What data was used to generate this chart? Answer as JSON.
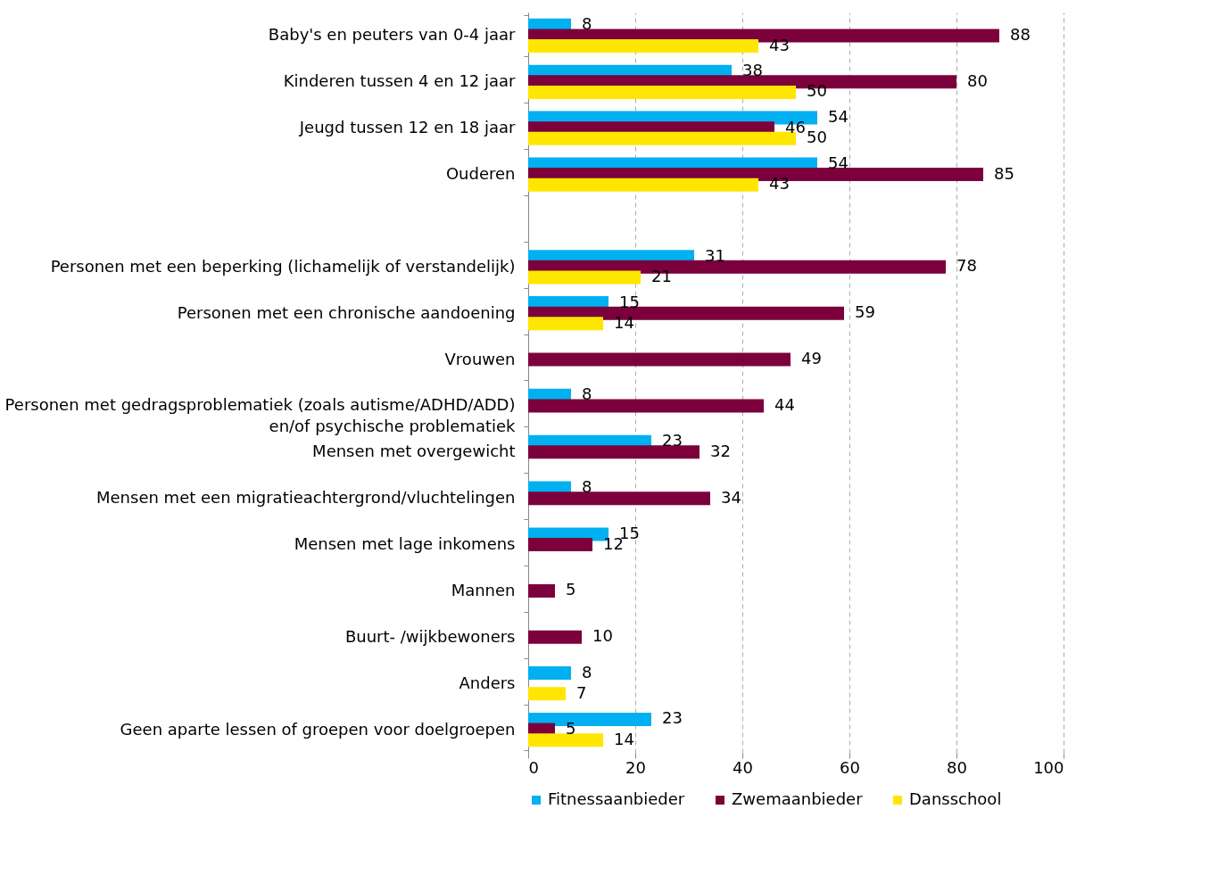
{
  "chart_data": {
    "type": "bar",
    "orientation": "horizontal",
    "categories": [
      "Baby's en peuters van 0-4 jaar",
      "Kinderen tussen 4 en 12 jaar",
      "Jeugd tussen 12 en 18 jaar",
      "Ouderen",
      null,
      "Personen met een beperking (lichamelijk of verstandelijk)",
      "Personen met een chronische aandoening",
      "Vrouwen",
      "Personen met gedragsproblematiek (zoals autisme/ADHD/ADD)\nen/of psychische problematiek",
      "Mensen met overgewicht",
      "Mensen met een migratieachtergrond/vluchtelingen",
      "Mensen met lage inkomens",
      "Mannen",
      "Buurt- /wijkbewoners",
      "Anders",
      "Geen aparte lessen of groepen voor doelgroepen"
    ],
    "series": [
      {
        "name": "Fitnessaanbieder",
        "color": "#00b0f0",
        "values": [
          8,
          38,
          54,
          54,
          null,
          31,
          15,
          null,
          8,
          23,
          8,
          15,
          null,
          null,
          8,
          23
        ]
      },
      {
        "name": "Zwemaanbieder",
        "color": "#7b003c",
        "values": [
          88,
          80,
          46,
          85,
          null,
          78,
          59,
          49,
          44,
          32,
          34,
          12,
          5,
          10,
          null,
          5
        ]
      },
      {
        "name": "Dansschool",
        "color": "#ffe600",
        "values": [
          43,
          50,
          50,
          43,
          null,
          21,
          14,
          null,
          null,
          null,
          null,
          null,
          null,
          null,
          7,
          14
        ]
      }
    ],
    "xlim": [
      0,
      100
    ],
    "xticks": [
      0,
      20,
      40,
      60,
      80,
      100
    ],
    "grid": "x",
    "legend": "bottom",
    "data_labels": true
  }
}
